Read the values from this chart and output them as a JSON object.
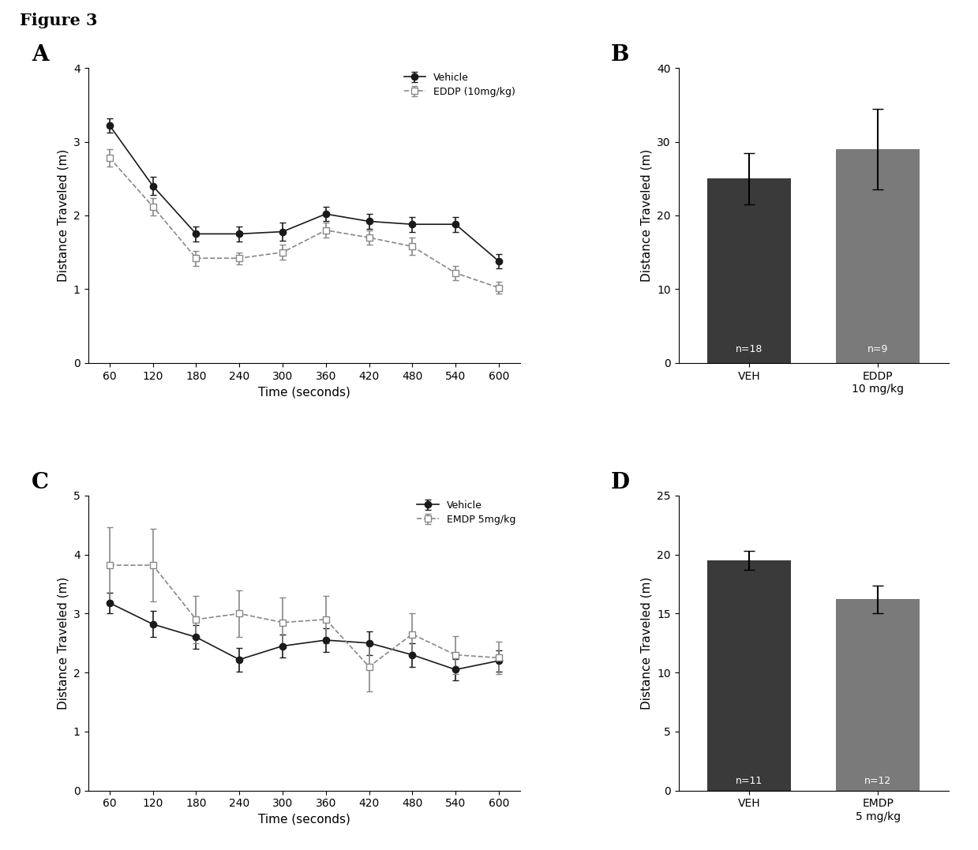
{
  "figure_title": "Figure 3",
  "time_points": [
    60,
    120,
    180,
    240,
    300,
    360,
    420,
    480,
    540,
    600
  ],
  "A_vehicle_y": [
    3.22,
    2.4,
    1.75,
    1.75,
    1.78,
    2.02,
    1.92,
    1.88,
    1.88,
    1.38
  ],
  "A_vehicle_err": [
    0.1,
    0.12,
    0.1,
    0.1,
    0.12,
    0.1,
    0.1,
    0.1,
    0.1,
    0.1
  ],
  "A_eddp_y": [
    2.78,
    2.12,
    1.42,
    1.42,
    1.5,
    1.8,
    1.7,
    1.58,
    1.22,
    1.02
  ],
  "A_eddp_err": [
    0.12,
    0.12,
    0.1,
    0.08,
    0.1,
    0.1,
    0.1,
    0.12,
    0.1,
    0.08
  ],
  "A_ylim": [
    0,
    4
  ],
  "A_yticks": [
    0,
    1,
    2,
    3,
    4
  ],
  "B_veh_mean": 25.0,
  "B_veh_err": 3.5,
  "B_eddp_mean": 29.0,
  "B_eddp_err": 5.5,
  "B_ylim": [
    0,
    40
  ],
  "B_yticks": [
    0,
    10,
    20,
    30,
    40
  ],
  "B_n_veh": "n=18",
  "B_n_eddp": "n=9",
  "B_xlabel1": "VEH",
  "B_xlabel2": "EDDP\n10 mg/kg",
  "C_vehicle_y": [
    3.18,
    2.82,
    2.6,
    2.22,
    2.45,
    2.55,
    2.5,
    2.3,
    2.05,
    2.2
  ],
  "C_vehicle_err": [
    0.18,
    0.22,
    0.2,
    0.2,
    0.2,
    0.2,
    0.2,
    0.2,
    0.18,
    0.18
  ],
  "C_emdp_y": [
    3.82,
    3.82,
    2.9,
    3.0,
    2.85,
    2.9,
    2.1,
    2.65,
    2.3,
    2.25
  ],
  "C_emdp_err": [
    0.65,
    0.62,
    0.4,
    0.4,
    0.42,
    0.4,
    0.42,
    0.35,
    0.32,
    0.28
  ],
  "C_ylim": [
    0,
    5
  ],
  "C_yticks": [
    0,
    1,
    2,
    3,
    4,
    5
  ],
  "D_veh_mean": 19.5,
  "D_veh_err": 0.8,
  "D_emdp_mean": 16.2,
  "D_emdp_err": 1.2,
  "D_ylim": [
    0,
    25
  ],
  "D_yticks": [
    0,
    5,
    10,
    15,
    20,
    25
  ],
  "D_n_veh": "n=11",
  "D_n_emdp": "n=12",
  "D_xlabel1": "VEH",
  "D_xlabel2": "EMDP\n5 mg/kg",
  "dark_bar_color": "#3a3a3a",
  "light_bar_color": "#7a7a7a",
  "line_color_vehicle": "#1a1a1a",
  "line_color_drug": "#888888",
  "marker_vehicle": "o",
  "marker_drug": "s"
}
